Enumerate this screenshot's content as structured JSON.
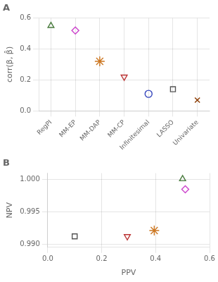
{
  "chart_data": [
    {
      "type": "scatter",
      "title": "A",
      "categories": [
        "RegPI",
        "MM-EP",
        "MM-DAP",
        "MM-CP",
        "Infinitesimal",
        "LASSO",
        "Univariate"
      ],
      "values": [
        0.55,
        0.52,
        0.32,
        0.22,
        0.11,
        0.14,
        0.07
      ],
      "markers": [
        "triangle-up",
        "diamond",
        "star",
        "triangle-down",
        "circle",
        "square",
        "x"
      ],
      "colors": [
        "#4a7c3f",
        "#cc44cc",
        "#cc7722",
        "#bb3333",
        "#3344bb",
        "#555555",
        "#8B3A00"
      ],
      "ylabel": "corr(β, β̂)",
      "ylim": [
        0,
        0.6
      ],
      "yticks": [
        {
          "value": 0,
          "label": "0.0"
        },
        0.2,
        0.4,
        0.6
      ],
      "grid": true
    },
    {
      "type": "scatter",
      "title": "B",
      "x": [
        0.1,
        0.5,
        0.51,
        0.295,
        0.395
      ],
      "values": [
        0.9912,
        1.0001,
        0.9985,
        0.9912,
        0.9921
      ],
      "markers": [
        "square",
        "triangle-up",
        "diamond",
        "triangle-down",
        "star"
      ],
      "colors": [
        "#555555",
        "#4a7c3f",
        "#cc44cc",
        "#bb3333",
        "#cc7722"
      ],
      "xlabel": "PPV",
      "ylabel": "NPV",
      "xlim": [
        0,
        0.6
      ],
      "ylim": [
        0.9895,
        1.001
      ],
      "xticks": [
        {
          "value": 0,
          "label": "0.0"
        },
        0.2,
        0.4,
        0.6
      ],
      "yticks": [
        {
          "value": 0.99,
          "label": "0.990"
        },
        {
          "value": 0.995,
          "label": "0.995"
        },
        {
          "value": 1.0,
          "label": "1.000"
        }
      ],
      "grid": true
    }
  ]
}
